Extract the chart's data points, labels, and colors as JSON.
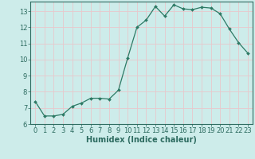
{
  "x": [
    0,
    1,
    2,
    3,
    4,
    5,
    6,
    7,
    8,
    9,
    10,
    11,
    12,
    13,
    14,
    15,
    16,
    17,
    18,
    19,
    20,
    21,
    22,
    23
  ],
  "y": [
    7.4,
    6.5,
    6.5,
    6.6,
    7.1,
    7.3,
    7.6,
    7.6,
    7.55,
    8.1,
    10.1,
    12.0,
    12.45,
    13.3,
    12.7,
    13.4,
    13.15,
    13.1,
    13.25,
    13.2,
    12.85,
    11.9,
    11.05,
    10.4
  ],
  "line_color": "#2d7a65",
  "marker": "D",
  "marker_size": 2.0,
  "background_color": "#cdecea",
  "grid_color": "#e8c8cc",
  "xlabel": "Humidex (Indice chaleur)",
  "xlim": [
    -0.5,
    23.5
  ],
  "ylim": [
    6.0,
    13.6
  ],
  "yticks": [
    6,
    7,
    8,
    9,
    10,
    11,
    12,
    13
  ],
  "xticks": [
    0,
    1,
    2,
    3,
    4,
    5,
    6,
    7,
    8,
    9,
    10,
    11,
    12,
    13,
    14,
    15,
    16,
    17,
    18,
    19,
    20,
    21,
    22,
    23
  ],
  "tick_color": "#2d6b60",
  "label_color": "#2d6b60",
  "axis_color": "#2d6b60",
  "font_size_ticks": 6,
  "font_size_label": 7
}
